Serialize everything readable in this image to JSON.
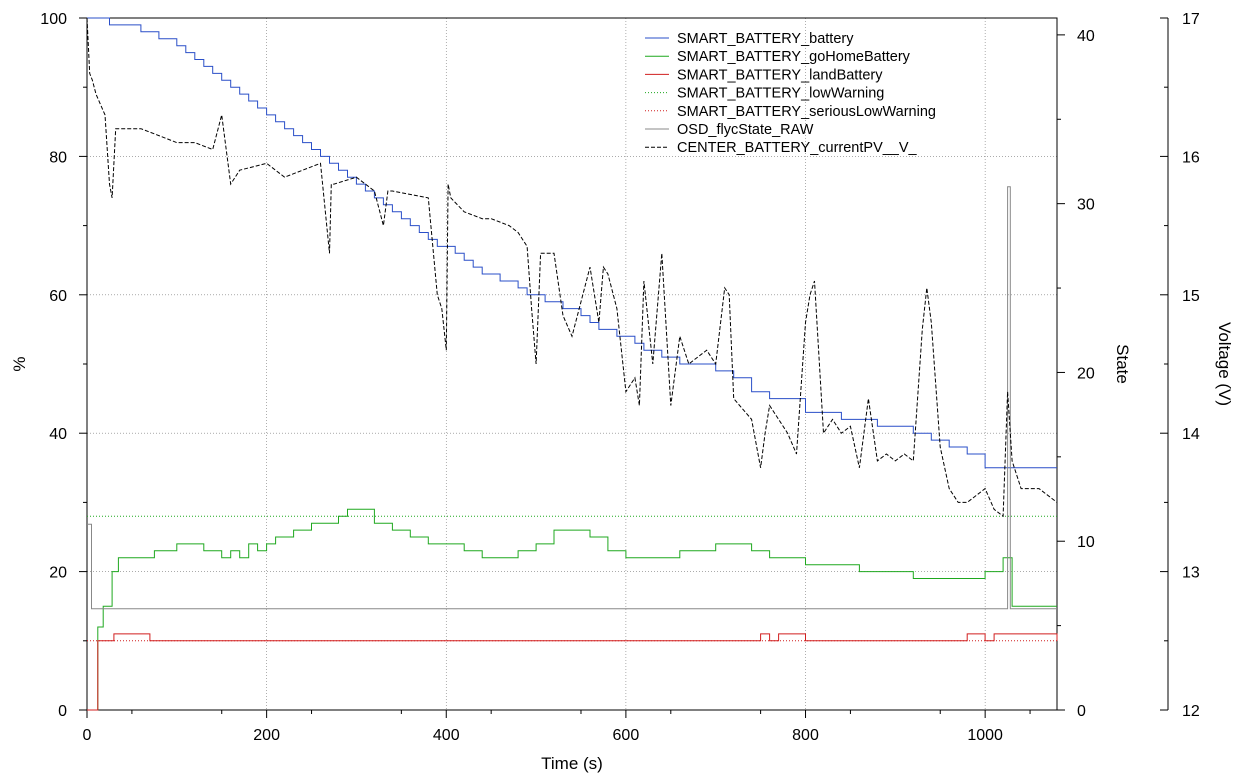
{
  "chart_data": {
    "type": "line",
    "title": "",
    "xlabel": "Time (s)",
    "ylabel_left": "%",
    "ylabel_mid": "State",
    "ylabel_right": "Voltage (V)",
    "xlim": [
      0,
      1080
    ],
    "ylim_left": [
      0,
      100
    ],
    "ylim_mid": [
      0,
      41
    ],
    "ylim_right": [
      12,
      17
    ],
    "x_ticks": [
      0,
      200,
      400,
      600,
      800,
      1000
    ],
    "y_left_ticks": [
      0,
      20,
      40,
      60,
      80,
      100
    ],
    "y_mid_ticks": [
      0,
      10,
      20,
      30,
      40
    ],
    "y_right_ticks": [
      12,
      13,
      14,
      15,
      16,
      17
    ],
    "grid": true,
    "legend_position": "top-right",
    "series": [
      {
        "name": "SMART_BATTERY_battery",
        "axis": "left",
        "color": "#2a4fc8",
        "style": "step",
        "x": [
          0,
          25,
          40,
          60,
          80,
          90,
          100,
          110,
          120,
          130,
          140,
          150,
          160,
          170,
          180,
          190,
          200,
          210,
          220,
          230,
          240,
          250,
          260,
          270,
          280,
          290,
          300,
          310,
          320,
          330,
          340,
          350,
          360,
          370,
          380,
          390,
          400,
          410,
          420,
          430,
          440,
          450,
          460,
          470,
          480,
          490,
          500,
          510,
          520,
          530,
          540,
          550,
          560,
          570,
          580,
          590,
          600,
          610,
          620,
          630,
          640,
          650,
          660,
          680,
          700,
          720,
          740,
          760,
          780,
          800,
          820,
          840,
          860,
          880,
          900,
          920,
          940,
          960,
          980,
          1000,
          1020,
          1060,
          1080
        ],
        "values": [
          100,
          99,
          99,
          98,
          97,
          97,
          96,
          95,
          94,
          93,
          92,
          91,
          90,
          89,
          88,
          87,
          86,
          85,
          84,
          83,
          82,
          81,
          80,
          79,
          78,
          77,
          76,
          75,
          74,
          73,
          72,
          71,
          70,
          69,
          68,
          67,
          67,
          66,
          65,
          64,
          63,
          63,
          62,
          62,
          61,
          60,
          60,
          59,
          59,
          58,
          58,
          57,
          56,
          55,
          55,
          54,
          54,
          53,
          52,
          52,
          51,
          51,
          50,
          50,
          49,
          48,
          46,
          45,
          45,
          43,
          43,
          42,
          42,
          41,
          41,
          40,
          39,
          38,
          37,
          35,
          35,
          35,
          35
        ]
      },
      {
        "name": "SMART_BATTERY_goHomeBattery",
        "axis": "left",
        "color": "#1fa81f",
        "style": "step",
        "x": [
          0,
          12,
          18,
          28,
          35,
          60,
          75,
          85,
          100,
          110,
          130,
          150,
          160,
          170,
          180,
          190,
          200,
          210,
          230,
          250,
          270,
          280,
          290,
          300,
          320,
          340,
          360,
          380,
          400,
          420,
          440,
          460,
          480,
          500,
          520,
          540,
          560,
          580,
          600,
          620,
          640,
          660,
          680,
          700,
          720,
          740,
          760,
          780,
          800,
          820,
          840,
          860,
          880,
          900,
          920,
          940,
          960,
          980,
          1000,
          1010,
          1020,
          1030,
          1080
        ],
        "values": [
          0,
          12,
          15,
          20,
          22,
          22,
          23,
          23,
          24,
          24,
          23,
          22,
          23,
          22,
          24,
          23,
          24,
          25,
          26,
          27,
          27,
          28,
          29,
          29,
          27,
          26,
          25,
          24,
          24,
          23,
          22,
          22,
          23,
          24,
          26,
          26,
          25,
          23,
          22,
          22,
          22,
          23,
          23,
          24,
          24,
          23,
          22,
          22,
          21,
          21,
          21,
          20,
          20,
          20,
          19,
          19,
          19,
          19,
          20,
          20,
          22,
          15,
          15
        ]
      },
      {
        "name": "SMART_BATTERY_landBattery",
        "axis": "left",
        "color": "#d11f1f",
        "style": "step",
        "x": [
          0,
          12,
          30,
          70,
          750,
          760,
          770,
          800,
          980,
          1000,
          1010,
          1080
        ],
        "values": [
          0,
          10,
          11,
          10,
          11,
          10,
          11,
          10,
          11,
          10,
          11,
          10
        ]
      },
      {
        "name": "SMART_BATTERY_lowWarning",
        "axis": "left",
        "color": "#1fa81f",
        "style": "dotted",
        "x": [
          0,
          1080
        ],
        "values": [
          28,
          28
        ]
      },
      {
        "name": "SMART_BATTERY_seriousLowWarning",
        "axis": "left",
        "color": "#d11f1f",
        "style": "dotted",
        "x": [
          0,
          1080
        ],
        "values": [
          10,
          10
        ]
      },
      {
        "name": "OSD_flycState_RAW",
        "axis": "mid",
        "color": "#888888",
        "style": "step",
        "x": [
          0,
          5,
          1022,
          1025,
          1028,
          1080
        ],
        "values": [
          11,
          6,
          6,
          31,
          6,
          6
        ]
      },
      {
        "name": "CENTER_BATTERY_currentPV__V_",
        "axis": "right",
        "color": "#000000",
        "style": "dashed",
        "x": [
          0,
          3,
          6,
          10,
          20,
          25,
          28,
          32,
          40,
          60,
          80,
          100,
          120,
          140,
          150,
          160,
          170,
          200,
          220,
          240,
          260,
          270,
          272,
          275,
          300,
          320,
          330,
          335,
          340,
          380,
          390,
          395,
          400,
          402,
          405,
          420,
          440,
          450,
          470,
          480,
          490,
          495,
          500,
          505,
          520,
          530,
          540,
          560,
          570,
          575,
          580,
          590,
          600,
          610,
          615,
          620,
          630,
          640,
          650,
          660,
          670,
          680,
          690,
          700,
          710,
          715,
          720,
          740,
          750,
          755,
          760,
          780,
          790,
          800,
          805,
          810,
          820,
          830,
          840,
          850,
          860,
          870,
          880,
          890,
          900,
          910,
          920,
          930,
          935,
          940,
          950,
          960,
          970,
          980,
          990,
          1000,
          1010,
          1020,
          1025,
          1030,
          1040,
          1060,
          1080
        ],
        "values": [
          17.0,
          16.6,
          16.55,
          16.45,
          16.3,
          15.8,
          15.7,
          16.2,
          16.2,
          16.2,
          16.15,
          16.1,
          16.1,
          16.05,
          16.3,
          15.8,
          15.9,
          15.95,
          15.85,
          15.9,
          15.95,
          15.3,
          15.8,
          15.8,
          15.85,
          15.75,
          15.5,
          15.75,
          15.75,
          15.7,
          15.0,
          14.9,
          14.6,
          15.8,
          15.7,
          15.6,
          15.55,
          15.55,
          15.5,
          15.45,
          15.35,
          14.9,
          14.5,
          15.3,
          15.3,
          14.85,
          14.7,
          15.2,
          14.8,
          15.2,
          15.15,
          14.9,
          14.3,
          14.4,
          14.2,
          15.1,
          14.5,
          15.3,
          14.2,
          14.7,
          14.5,
          14.55,
          14.6,
          14.5,
          15.05,
          15.0,
          14.25,
          14.1,
          13.75,
          14.0,
          14.2,
          14.0,
          13.85,
          14.8,
          15.0,
          15.1,
          14.0,
          14.1,
          14.0,
          14.05,
          13.75,
          14.25,
          13.8,
          13.85,
          13.8,
          13.85,
          13.8,
          14.75,
          15.05,
          14.8,
          13.9,
          13.6,
          13.5,
          13.5,
          13.55,
          13.6,
          13.45,
          13.4,
          14.3,
          13.8,
          13.6,
          13.6,
          13.5
        ]
      }
    ]
  }
}
